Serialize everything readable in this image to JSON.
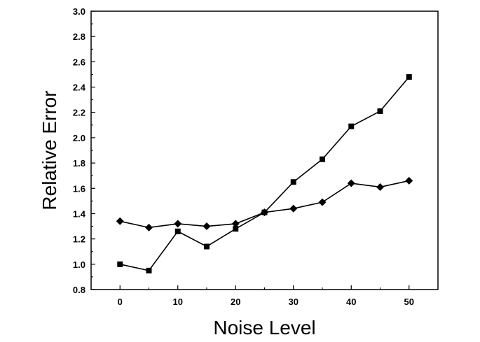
{
  "chart_data": {
    "type": "line",
    "xlabel": "Noise Level",
    "ylabel": "Relative Error",
    "xlim": [
      -5,
      55
    ],
    "ylim": [
      0.8,
      3.0
    ],
    "xticks": [
      0,
      10,
      20,
      30,
      40,
      50
    ],
    "yticks": [
      0.8,
      1.0,
      1.2,
      1.4,
      1.6,
      1.8,
      2.0,
      2.2,
      2.4,
      2.6,
      2.8,
      3.0
    ],
    "xtick_labels": [
      "0",
      "10",
      "20",
      "30",
      "40",
      "50"
    ],
    "ytick_labels": [
      "0.8",
      "1.0",
      "1.2",
      "1.4",
      "1.6",
      "1.8",
      "2.0",
      "2.2",
      "2.4",
      "2.6",
      "2.8",
      "3.0"
    ],
    "grid": false,
    "series": [
      {
        "marker": "square",
        "color": "#000000",
        "x": [
          0,
          5,
          10,
          15,
          20,
          25,
          30,
          35,
          40,
          45,
          50
        ],
        "y": [
          1.0,
          0.95,
          1.26,
          1.14,
          1.28,
          1.41,
          1.65,
          1.83,
          2.09,
          2.21,
          2.48
        ]
      },
      {
        "marker": "diamond",
        "color": "#000000",
        "x": [
          0,
          5,
          10,
          15,
          20,
          25,
          30,
          35,
          40,
          45,
          50
        ],
        "y": [
          1.34,
          1.29,
          1.32,
          1.3,
          1.32,
          1.41,
          1.44,
          1.49,
          1.64,
          1.61,
          1.66
        ]
      }
    ]
  }
}
